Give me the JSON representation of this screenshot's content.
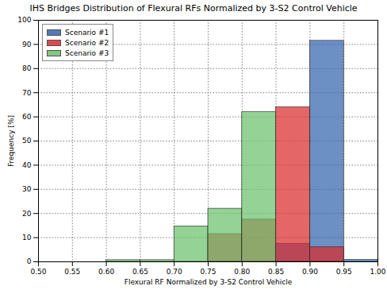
{
  "chart_data": {
    "type": "histogram",
    "title": "IHS Bridges Distribution of Flexural RFs Normalized by 3-S2 Control Vehicle",
    "x_label": "Flexural RF Normalized by 3-S2 Control Vehicle",
    "y_label": "Frequency [%]",
    "bins": [
      0.5,
      0.55,
      0.6,
      0.65,
      0.7,
      0.75,
      0.8,
      0.85,
      0.9,
      0.95,
      1.0
    ],
    "series": [
      {
        "name": "Scenario #1",
        "color": "#3565ad",
        "values": [
          0,
          0,
          0,
          0,
          0,
          0,
          0,
          7.5,
          91.5,
          0.8
        ]
      },
      {
        "name": "Scenario #2",
        "color": "#d92b2b",
        "values": [
          0,
          0,
          0,
          0,
          0,
          11.5,
          17.5,
          64,
          6,
          0
        ]
      },
      {
        "name": "Scenario #3",
        "color": "#6cc06c",
        "values": [
          0,
          0,
          0.7,
          0.7,
          14.7,
          22,
          62,
          0,
          0,
          0
        ]
      }
    ],
    "xlim": [
      0.5,
      1.0
    ],
    "xticks": [
      {
        "value": 0.5,
        "label": "0.50"
      },
      0.55,
      {
        "value": 0.6,
        "label": "0.60"
      },
      0.65,
      {
        "value": 0.7,
        "label": "0.70"
      },
      0.75,
      {
        "value": 0.8,
        "label": "0.80"
      },
      0.85,
      {
        "value": 0.9,
        "label": "0.90"
      },
      0.95,
      {
        "value": 1.0,
        "label": "1.00"
      }
    ],
    "ylim": [
      0,
      100
    ],
    "yticks": [
      0,
      10,
      20,
      30,
      40,
      50,
      60,
      70,
      80,
      90,
      100
    ],
    "grid": true,
    "legend": "upper left"
  }
}
